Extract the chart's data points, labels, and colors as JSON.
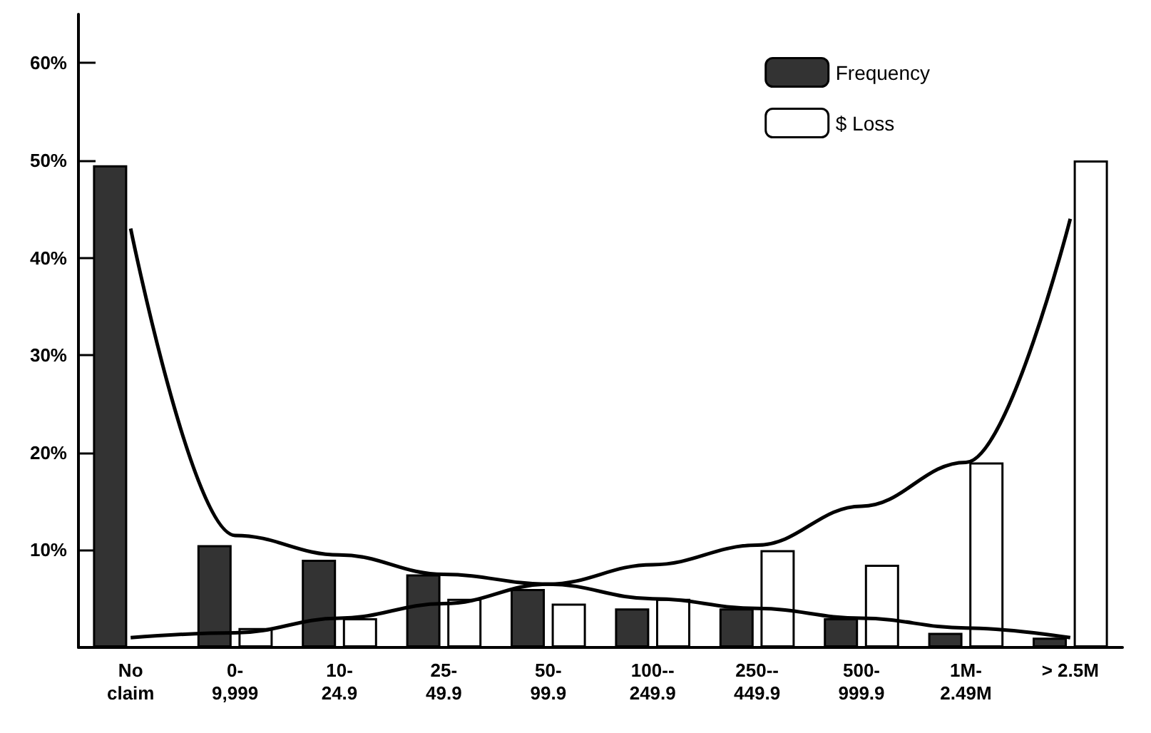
{
  "chart_data": {
    "type": "bar",
    "categories": [
      "No\nclaim",
      "0-\n9,999",
      "10-\n24.9",
      "25-\n49.9",
      "50-\n99.9",
      "100--\n249.9",
      "250--\n449.9",
      "500-\n999.9",
      "1M-\n2.49M",
      "> 2.5M"
    ],
    "series": [
      {
        "name": "Frequency",
        "color": "#333333",
        "values": [
          49.5,
          10.5,
          9,
          7.5,
          6,
          4,
          4,
          3,
          1.5,
          1
        ]
      },
      {
        "name": "$ Loss",
        "color": "#ffffff",
        "values": [
          null,
          2,
          3,
          5,
          4.5,
          5,
          10,
          8.5,
          19,
          50
        ]
      },
      {
        "type": "line",
        "color": "#000000",
        "values": [
          43,
          11.5,
          9.5,
          7.5,
          6.5,
          5,
          4,
          3,
          2,
          1
        ]
      },
      {
        "type": "line",
        "color": "#000000",
        "values": [
          1,
          1.5,
          3,
          4.5,
          6.5,
          8.5,
          10.5,
          14.5,
          19,
          44
        ]
      }
    ],
    "ylim": [
      0,
      65
    ],
    "yticks": [
      {
        "value": 10,
        "label": "10%"
      },
      {
        "value": 20,
        "label": "20%"
      },
      {
        "value": 30,
        "label": "30%"
      },
      {
        "value": 40,
        "label": "40%"
      },
      {
        "value": 50,
        "label": "50%"
      },
      {
        "value": 60,
        "label": "60%"
      }
    ],
    "grid": false,
    "legend": "top right",
    "marker": "none",
    "line_style": "solid"
  }
}
